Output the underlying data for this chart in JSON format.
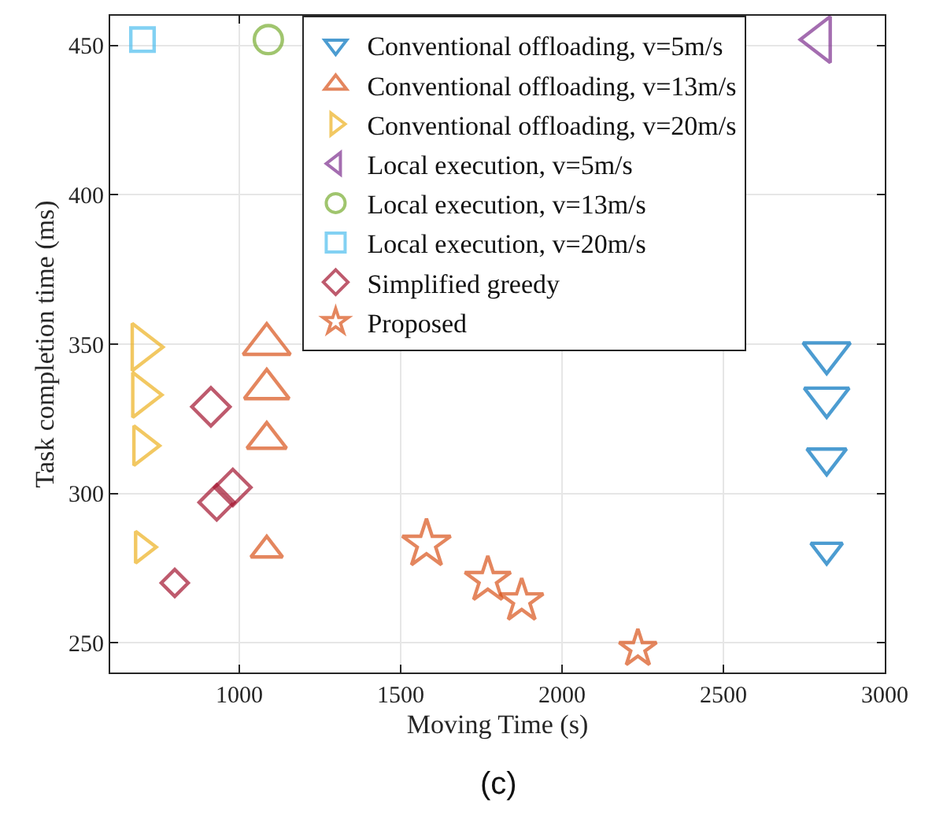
{
  "chart_data": {
    "type": "bubble",
    "xlabel": "Moving Time (s)",
    "ylabel": "Task completion time (ms)",
    "annotations": [
      "(c)"
    ],
    "xlim": [
      600,
      3000
    ],
    "xticks": [
      1000,
      1500,
      2000,
      2500,
      3000
    ],
    "ylim": [
      240,
      460
    ],
    "yticks": [
      250,
      300,
      350,
      400,
      450
    ],
    "grid": true,
    "legend": "top",
    "series": [
      {
        "name": "Conventional offloading, v=5m/s",
        "color": "#0072bd",
        "marker": "triangle-down",
        "x": [
          2820,
          2820,
          2820,
          2820
        ],
        "values": [
          347,
          332,
          312,
          281
        ],
        "sizes": [
          1,
          0.9,
          0.7,
          0.45
        ]
      },
      {
        "name": "Conventional offloading, v=13m/s",
        "color": "#d95319",
        "marker": "triangle-up",
        "x": [
          1085,
          1085,
          1085,
          1085
        ],
        "values": [
          350,
          335,
          318,
          281
        ],
        "sizes": [
          1,
          0.9,
          0.7,
          0.45
        ]
      },
      {
        "name": "Conventional offloading, v=20m/s",
        "color": "#edb120",
        "marker": "triangle-right",
        "x": [
          700,
          700,
          700,
          700
        ],
        "values": [
          349,
          333,
          316,
          282
        ],
        "sizes": [
          1,
          0.9,
          0.7,
          0.45
        ]
      },
      {
        "name": "Local execution, v=5m/s",
        "color": "#7e2f8e",
        "marker": "triangle-left",
        "x": [
          2800
        ],
        "values": [
          452
        ],
        "sizes": [
          0.95
        ]
      },
      {
        "name": "Local execution, v=13m/s",
        "color": "#77ac30",
        "marker": "circle",
        "x": [
          1090
        ],
        "values": [
          452
        ],
        "sizes": [
          0.85
        ]
      },
      {
        "name": "Local execution, v=20m/s",
        "color": "#4dbeee",
        "marker": "square",
        "x": [
          700
        ],
        "values": [
          452
        ],
        "sizes": [
          0.75
        ]
      },
      {
        "name": "Simplified greedy",
        "color": "#a2142f",
        "marker": "diamond",
        "x": [
          912,
          930,
          980,
          800
        ],
        "values": [
          329,
          297,
          302,
          270
        ],
        "sizes": [
          1,
          0.85,
          0.9,
          0.5
        ]
      },
      {
        "name": "Proposed",
        "color": "#d95319",
        "marker": "star",
        "x": [
          1580,
          1770,
          1875,
          2235
        ],
        "values": [
          283,
          271,
          264,
          248
        ],
        "sizes": [
          1,
          0.9,
          0.8,
          0.6
        ]
      }
    ]
  }
}
